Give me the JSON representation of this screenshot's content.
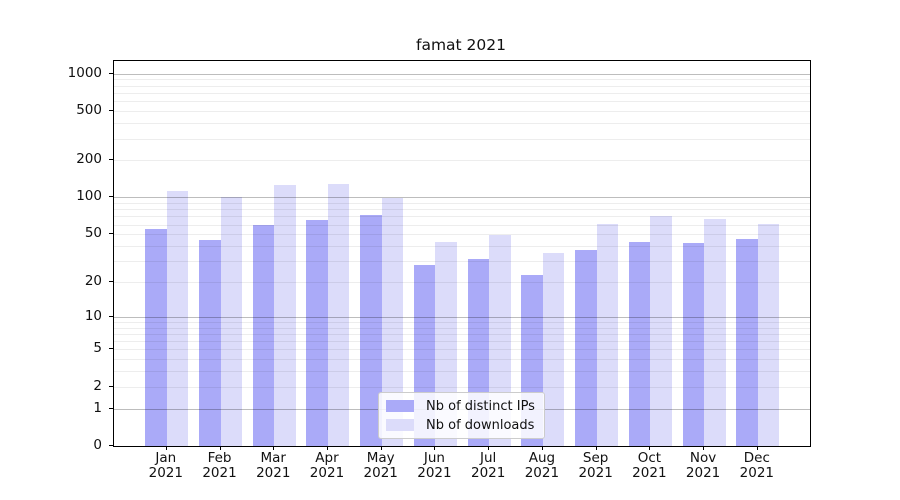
{
  "chart_data": {
    "type": "bar",
    "title": "famat 2021",
    "year_label": "2021",
    "categories": [
      "Jan",
      "Feb",
      "Mar",
      "Apr",
      "May",
      "Jun",
      "Jul",
      "Aug",
      "Sep",
      "Oct",
      "Nov",
      "Dec"
    ],
    "series": [
      {
        "name": "Nb of distinct IPs",
        "color": "#aaaaf8",
        "values": [
          55,
          45,
          60,
          65,
          72,
          28,
          31,
          23,
          37,
          43,
          42,
          46
        ]
      },
      {
        "name": "Nb of downloads",
        "color": "#dcdcfa",
        "values": [
          113,
          100,
          125,
          129,
          98,
          43,
          49,
          35,
          61,
          70,
          67,
          61
        ]
      }
    ],
    "xlabel": "",
    "ylabel": "",
    "y_scale": "log(1+x)",
    "ylim": [
      0,
      1270
    ],
    "y_ticks": [
      0,
      1,
      2,
      5,
      10,
      20,
      50,
      100,
      200,
      500,
      1000
    ],
    "grid": "both, drawn above bars",
    "legend_position": "lower center"
  }
}
